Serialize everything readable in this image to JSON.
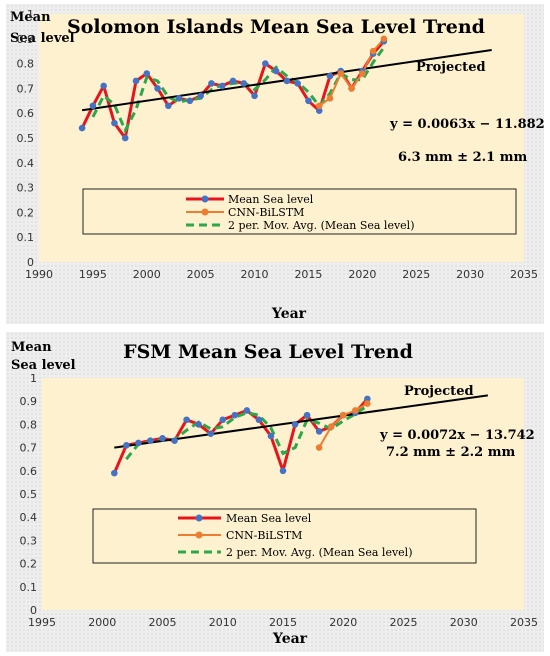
{
  "chart_data": [
    {
      "type": "line",
      "title": "Solomon Islands Mean Sea Level Trend",
      "ylabel_line1": "Mean",
      "ylabel_line2": "Sea level",
      "xlabel": "Year",
      "xlim": [
        1990,
        2035
      ],
      "ylim": [
        0,
        1
      ],
      "x_ticks": [
        1990,
        1995,
        2000,
        2005,
        2010,
        2015,
        2020,
        2025,
        2030,
        2035
      ],
      "y_ticks": [
        0,
        0.1,
        0.2,
        0.3,
        0.4,
        0.5,
        0.6,
        0.7,
        0.8,
        0.9,
        1
      ],
      "grid": false,
      "projected_label": "Projected",
      "equation": "y = 0.0063x − 11.882",
      "rate": "6.3 mm ± 2.1 mm",
      "trend": {
        "x": [
          1994,
          2032
        ],
        "y": [
          0.612,
          0.855
        ]
      },
      "legend": {
        "mean_label": "Mean Sea level",
        "cnn_label": "CNN-BiLSTM",
        "ma_label": "2 per. Mov. Avg. (Mean Sea level)"
      },
      "series": [
        {
          "name": "Mean Sea level",
          "color": "#e8141c",
          "marker_color": "#4472c4",
          "x": [
            1994,
            1995,
            1996,
            1997,
            1998,
            1999,
            2000,
            2001,
            2002,
            2003,
            2004,
            2005,
            2006,
            2007,
            2008,
            2009,
            2010,
            2011,
            2012,
            2013,
            2014,
            2015,
            2016,
            2017,
            2018,
            2019,
            2020,
            2021,
            2022
          ],
          "y": [
            0.54,
            0.63,
            0.71,
            0.56,
            0.5,
            0.73,
            0.76,
            0.7,
            0.63,
            0.66,
            0.65,
            0.67,
            0.72,
            0.71,
            0.73,
            0.72,
            0.67,
            0.8,
            0.77,
            0.73,
            0.72,
            0.65,
            0.61,
            0.75,
            0.77,
            0.7,
            0.77,
            0.84,
            0.89
          ]
        },
        {
          "name": "CNN-BiLSTM",
          "color": "#ed7d31",
          "x": [
            2016,
            2017,
            2018,
            2019,
            2020,
            2021,
            2022
          ],
          "y": [
            0.63,
            0.66,
            0.76,
            0.7,
            0.76,
            0.85,
            0.9
          ]
        },
        {
          "name": "2 per. Mov. Avg. (Mean Sea level)",
          "color": "#2aa84a",
          "x": [
            1995,
            1996,
            1997,
            1998,
            1999,
            2000,
            2001,
            2002,
            2003,
            2004,
            2005,
            2006,
            2007,
            2008,
            2009,
            2010,
            2011,
            2012,
            2013,
            2014,
            2015,
            2016,
            2017,
            2018,
            2019,
            2020,
            2021,
            2022
          ],
          "y": [
            0.585,
            0.67,
            0.635,
            0.53,
            0.615,
            0.745,
            0.73,
            0.665,
            0.645,
            0.655,
            0.66,
            0.695,
            0.715,
            0.72,
            0.725,
            0.695,
            0.735,
            0.785,
            0.75,
            0.725,
            0.685,
            0.63,
            0.68,
            0.76,
            0.735,
            0.735,
            0.805,
            0.865
          ]
        }
      ]
    },
    {
      "type": "line",
      "title": "FSM Mean Sea Level Trend",
      "ylabel_line1": "Mean",
      "ylabel_line2": "Sea level",
      "xlabel": "Year",
      "xlim": [
        1995,
        2035
      ],
      "ylim": [
        0,
        1
      ],
      "x_ticks": [
        1995,
        2000,
        2005,
        2010,
        2015,
        2020,
        2025,
        2030,
        2035
      ],
      "y_ticks": [
        0,
        0.1,
        0.2,
        0.3,
        0.4,
        0.5,
        0.6,
        0.7,
        0.8,
        0.9,
        1
      ],
      "grid": false,
      "projected_label": "Projected",
      "equation": "y = 0.0072x − 13.742",
      "rate": "7.2 mm ± 2.2 mm",
      "trend": {
        "x": [
          2001,
          2032
        ],
        "y": [
          0.7,
          0.925
        ]
      },
      "legend": {
        "mean_label": "Mean Sea level",
        "cnn_label": "CNN-BiLSTM",
        "ma_label": "2 per. Mov. Avg. (Mean Sea level)"
      },
      "series": [
        {
          "name": "Mean Sea level",
          "color": "#e8141c",
          "marker_color": "#4472c4",
          "x": [
            2001,
            2002,
            2003,
            2004,
            2005,
            2006,
            2007,
            2008,
            2009,
            2010,
            2011,
            2012,
            2013,
            2014,
            2015,
            2016,
            2017,
            2018,
            2019,
            2020,
            2021,
            2022
          ],
          "y": [
            0.59,
            0.71,
            0.72,
            0.73,
            0.74,
            0.73,
            0.82,
            0.8,
            0.76,
            0.82,
            0.84,
            0.86,
            0.82,
            0.75,
            0.6,
            0.8,
            0.84,
            0.77,
            0.79,
            0.84,
            0.85,
            0.91
          ]
        },
        {
          "name": "CNN-BiLSTM",
          "color": "#ed7d31",
          "x": [
            2018,
            2019,
            2020,
            2021,
            2022
          ],
          "y": [
            0.7,
            0.79,
            0.84,
            0.86,
            0.89
          ]
        },
        {
          "name": "2 per. Mov. Avg. (Mean Sea level)",
          "color": "#2aa84a",
          "x": [
            2002,
            2003,
            2004,
            2005,
            2006,
            2007,
            2008,
            2009,
            2010,
            2011,
            2012,
            2013,
            2014,
            2015,
            2016,
            2017,
            2018,
            2019,
            2020,
            2021,
            2022
          ],
          "y": [
            0.65,
            0.715,
            0.725,
            0.735,
            0.735,
            0.775,
            0.81,
            0.78,
            0.79,
            0.83,
            0.85,
            0.84,
            0.785,
            0.675,
            0.7,
            0.82,
            0.805,
            0.78,
            0.815,
            0.845,
            0.88
          ]
        }
      ]
    }
  ]
}
